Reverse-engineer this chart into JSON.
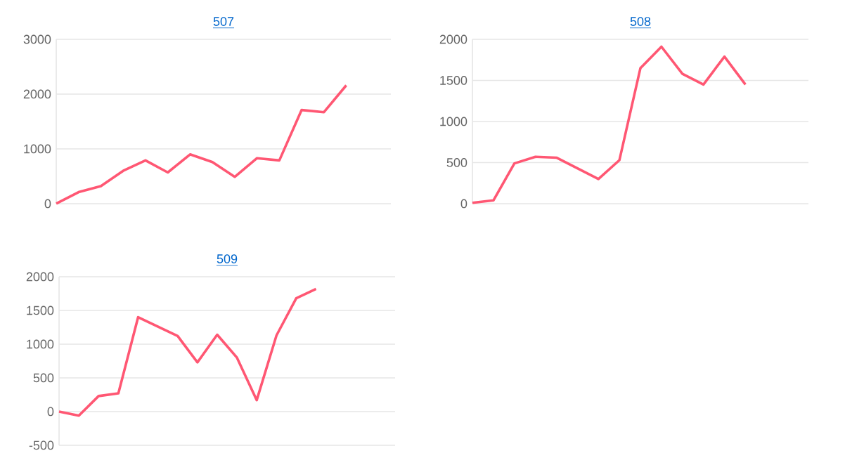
{
  "chart_data": [
    {
      "type": "line",
      "title": "507",
      "categories": [
        null,
        null,
        null,
        null,
        null,
        null,
        null,
        null,
        null,
        null,
        null,
        null,
        null,
        null,
        null,
        null
      ],
      "series": [
        {
          "color": "#ff5773",
          "values": [
            0,
            210,
            320,
            600,
            790,
            570,
            900,
            760,
            490,
            830,
            790,
            1710,
            1670,
            2160,
            null,
            null
          ]
        }
      ],
      "ylim": [
        0,
        3000
      ],
      "yticks": [
        0,
        1000,
        2000,
        3000
      ],
      "grid": "y",
      "marker": "none",
      "line_style": "solid",
      "tick_labels": "y"
    },
    {
      "type": "line",
      "title": "508",
      "categories": [
        null,
        null,
        null,
        null,
        null,
        null,
        null,
        null,
        null,
        null,
        null,
        null,
        null,
        null,
        null,
        null,
        null
      ],
      "series": [
        {
          "color": "#ff5773",
          "values": [
            10,
            40,
            490,
            570,
            560,
            430,
            300,
            530,
            1650,
            1910,
            1580,
            1450,
            1790,
            1450,
            null,
            null,
            null
          ]
        }
      ],
      "ylim": [
        0,
        2000
      ],
      "yticks": [
        0,
        500,
        1000,
        1500,
        2000
      ],
      "grid": "y",
      "marker": "none",
      "line_style": "solid",
      "tick_labels": "y"
    },
    {
      "type": "line",
      "title": "509",
      "categories": [
        null,
        null,
        null,
        null,
        null,
        null,
        null,
        null,
        null,
        null,
        null,
        null,
        null,
        null,
        null,
        null,
        null,
        null
      ],
      "series": [
        {
          "color": "#ff5773",
          "values": [
            0,
            -60,
            230,
            270,
            1400,
            1260,
            1120,
            730,
            1140,
            800,
            170,
            1130,
            1680,
            1820,
            null,
            null,
            null,
            null
          ]
        }
      ],
      "ylim": [
        -500,
        2000
      ],
      "yticks": [
        -500,
        0,
        500,
        1000,
        1500,
        2000
      ],
      "grid": "y",
      "marker": "none",
      "line_style": "solid",
      "tick_labels": "y"
    }
  ]
}
